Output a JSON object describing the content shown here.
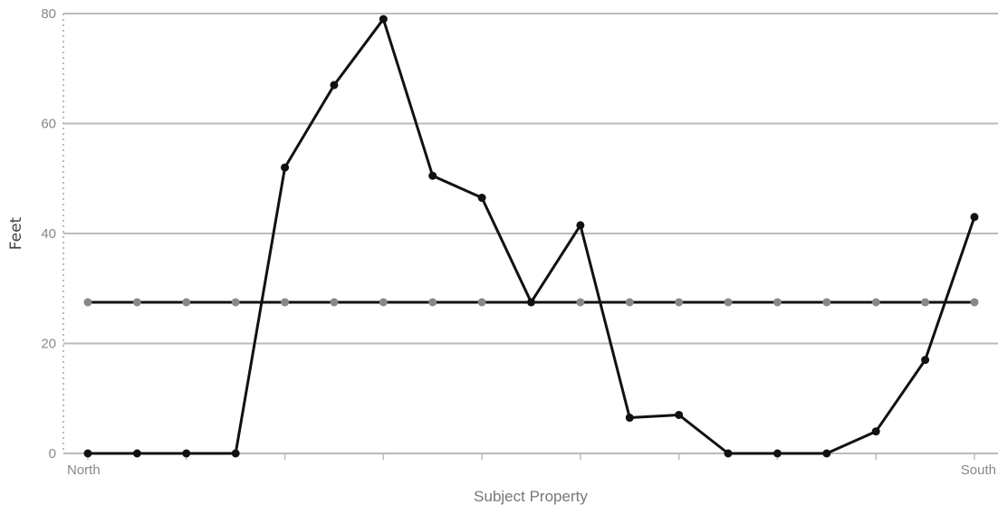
{
  "chart_data": {
    "type": "line",
    "xlabel": "Subject Property",
    "ylabel": "Feet",
    "x_tick_labels": {
      "first": "North",
      "last": "South"
    },
    "x_count": 19,
    "ylim": [
      0,
      80
    ],
    "yticks": [
      0,
      20,
      40,
      60,
      80
    ],
    "grid": "horizontal",
    "series": [
      {
        "color": "#111111",
        "values": [
          0,
          0,
          0,
          0,
          52,
          67,
          79,
          50.5,
          46.5,
          27.5,
          41.5,
          6.5,
          7,
          0,
          0,
          0,
          4,
          17,
          43
        ]
      },
      {
        "color": "#888888",
        "values": [
          27.5,
          27.5,
          27.5,
          27.5,
          27.5,
          27.5,
          27.5,
          27.5,
          27.5,
          27.5,
          27.5,
          27.5,
          27.5,
          27.5,
          27.5,
          27.5,
          27.5,
          27.5,
          27.5
        ]
      }
    ]
  }
}
